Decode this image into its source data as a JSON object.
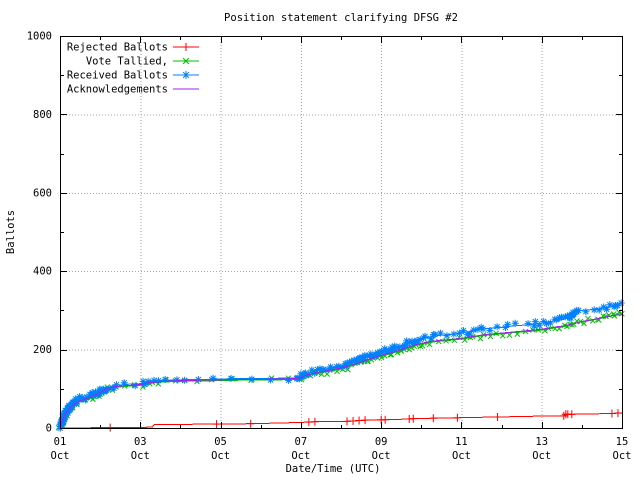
{
  "window": {
    "background": "#ffffff"
  },
  "chart_data": {
    "type": "line",
    "title": "Position statement clarifying DFSG #2",
    "xlabel": "Date/Time (UTC)",
    "ylabel": "Ballots",
    "ylim": [
      0,
      1000
    ],
    "y_major_ticks": [
      0,
      200,
      400,
      600,
      800,
      1000
    ],
    "y_minor_ticks": [
      100,
      300,
      500,
      700,
      900
    ],
    "x_major_days": [
      1,
      3,
      5,
      7,
      9,
      11,
      13,
      15
    ],
    "x_major_labels": [
      [
        "01",
        "Oct"
      ],
      [
        "03",
        "Oct"
      ],
      [
        "05",
        "Oct"
      ],
      [
        "07",
        "Oct"
      ],
      [
        "09",
        "Oct"
      ],
      [
        "11",
        "Oct"
      ],
      [
        "13",
        "Oct"
      ],
      [
        "15",
        "Oct"
      ]
    ],
    "x_minor_days": [
      2,
      4,
      6,
      8,
      10,
      12,
      14
    ],
    "grid": "dotted",
    "grid_color": "#a6a6a6",
    "legend_position": "top-left-inside",
    "series": [
      {
        "name": "Rejected Ballots",
        "slug": "rejected-ballots",
        "color": "#ff0000",
        "marker": "plus",
        "marker_days": [
          2.25,
          4.9,
          5.75,
          7.2,
          7.35,
          8.15,
          8.3,
          8.45,
          8.6,
          9.0,
          9.1,
          9.7,
          9.8,
          10.3,
          10.9,
          11.9,
          13.55,
          13.6,
          13.65,
          13.75,
          14.75,
          14.9
        ],
        "points": [
          [
            1.0,
            0
          ],
          [
            2.25,
            1
          ],
          [
            3.3,
            2
          ],
          [
            3.35,
            9
          ],
          [
            4.9,
            10
          ],
          [
            5.75,
            11
          ],
          [
            6.6,
            13
          ],
          [
            7.2,
            15
          ],
          [
            7.35,
            16
          ],
          [
            8.15,
            17
          ],
          [
            8.3,
            18
          ],
          [
            8.45,
            19
          ],
          [
            8.6,
            20
          ],
          [
            9.0,
            21
          ],
          [
            9.1,
            21
          ],
          [
            9.7,
            23
          ],
          [
            9.8,
            24
          ],
          [
            10.3,
            25
          ],
          [
            10.9,
            26
          ],
          [
            11.3,
            27
          ],
          [
            11.9,
            28
          ],
          [
            12.85,
            30
          ],
          [
            13.55,
            31
          ],
          [
            13.6,
            35
          ],
          [
            13.75,
            35
          ],
          [
            14.75,
            37
          ],
          [
            14.9,
            38
          ],
          [
            15.0,
            38
          ]
        ]
      },
      {
        "name": "Vote Tallied,",
        "slug": "vote-tallied",
        "color": "#00c000",
        "marker": "cross",
        "points": [
          [
            1.0,
            0
          ],
          [
            1.05,
            12
          ],
          [
            1.1,
            26
          ],
          [
            1.15,
            36
          ],
          [
            1.2,
            44
          ],
          [
            1.3,
            55
          ],
          [
            1.4,
            63
          ],
          [
            1.5,
            68
          ],
          [
            1.6,
            71
          ],
          [
            1.75,
            76
          ],
          [
            1.9,
            83
          ],
          [
            2.0,
            88
          ],
          [
            2.1,
            94
          ],
          [
            2.2,
            99
          ],
          [
            2.35,
            103
          ],
          [
            2.5,
            105
          ],
          [
            2.75,
            107
          ],
          [
            3.0,
            109
          ],
          [
            3.1,
            111
          ],
          [
            3.25,
            114
          ],
          [
            3.4,
            116
          ],
          [
            3.55,
            117
          ],
          [
            3.75,
            118
          ],
          [
            4.0,
            119
          ],
          [
            4.25,
            120
          ],
          [
            4.6,
            120
          ],
          [
            5.0,
            121
          ],
          [
            5.5,
            122
          ],
          [
            6.0,
            122
          ],
          [
            6.5,
            123
          ],
          [
            6.9,
            124
          ],
          [
            7.0,
            127
          ],
          [
            7.1,
            132
          ],
          [
            7.3,
            137
          ],
          [
            7.5,
            141
          ],
          [
            7.75,
            146
          ],
          [
            8.0,
            151
          ],
          [
            8.25,
            158
          ],
          [
            8.5,
            166
          ],
          [
            8.75,
            175
          ],
          [
            9.0,
            183
          ],
          [
            9.25,
            190
          ],
          [
            9.5,
            198
          ],
          [
            9.75,
            207
          ],
          [
            10.0,
            214
          ],
          [
            10.25,
            219
          ],
          [
            10.5,
            222
          ],
          [
            10.75,
            224
          ],
          [
            11.0,
            227
          ],
          [
            11.25,
            231
          ],
          [
            11.5,
            235
          ],
          [
            11.75,
            238
          ],
          [
            12.0,
            240
          ],
          [
            12.25,
            243
          ],
          [
            12.5,
            245
          ],
          [
            12.75,
            247
          ],
          [
            13.0,
            250
          ],
          [
            13.25,
            254
          ],
          [
            13.5,
            258
          ],
          [
            13.7,
            262
          ],
          [
            13.85,
            267
          ],
          [
            14.0,
            271
          ],
          [
            14.25,
            275
          ],
          [
            14.5,
            280
          ],
          [
            14.75,
            286
          ],
          [
            15.0,
            293
          ]
        ]
      },
      {
        "name": "Received Ballots",
        "slug": "received-ballots",
        "color": "#0080ff",
        "marker": "star",
        "points": [
          [
            1.0,
            2
          ],
          [
            1.05,
            15
          ],
          [
            1.1,
            30
          ],
          [
            1.15,
            40
          ],
          [
            1.2,
            48
          ],
          [
            1.3,
            60
          ],
          [
            1.4,
            68
          ],
          [
            1.5,
            73
          ],
          [
            1.6,
            76
          ],
          [
            1.75,
            81
          ],
          [
            1.9,
            88
          ],
          [
            2.0,
            93
          ],
          [
            2.1,
            99
          ],
          [
            2.2,
            104
          ],
          [
            2.35,
            108
          ],
          [
            2.5,
            110
          ],
          [
            2.75,
            112
          ],
          [
            3.0,
            113
          ],
          [
            3.1,
            115
          ],
          [
            3.25,
            118
          ],
          [
            3.4,
            120
          ],
          [
            3.55,
            121
          ],
          [
            3.75,
            122
          ],
          [
            4.0,
            123
          ],
          [
            4.25,
            124
          ],
          [
            4.6,
            124
          ],
          [
            5.0,
            125
          ],
          [
            5.5,
            126
          ],
          [
            6.0,
            126
          ],
          [
            6.5,
            127
          ],
          [
            6.9,
            128
          ],
          [
            7.0,
            132
          ],
          [
            7.1,
            138
          ],
          [
            7.3,
            143
          ],
          [
            7.5,
            148
          ],
          [
            7.75,
            153
          ],
          [
            8.0,
            158
          ],
          [
            8.25,
            166
          ],
          [
            8.5,
            175
          ],
          [
            8.75,
            185
          ],
          [
            9.0,
            194
          ],
          [
            9.25,
            202
          ],
          [
            9.5,
            210
          ],
          [
            9.75,
            220
          ],
          [
            10.0,
            228
          ],
          [
            10.25,
            233
          ],
          [
            10.5,
            237
          ],
          [
            10.75,
            239
          ],
          [
            11.0,
            242
          ],
          [
            11.25,
            247
          ],
          [
            11.5,
            252
          ],
          [
            11.75,
            255
          ],
          [
            12.0,
            257
          ],
          [
            12.25,
            260
          ],
          [
            12.5,
            262
          ],
          [
            12.75,
            264
          ],
          [
            13.0,
            268
          ],
          [
            13.25,
            272
          ],
          [
            13.5,
            276
          ],
          [
            13.7,
            282
          ],
          [
            13.8,
            290
          ],
          [
            13.9,
            298
          ],
          [
            14.0,
            300
          ],
          [
            14.25,
            302
          ],
          [
            14.5,
            305
          ],
          [
            14.75,
            310
          ],
          [
            15.0,
            318
          ]
        ]
      },
      {
        "name": "Acknowledgements",
        "slug": "acknowledgements",
        "color": "#a020f0",
        "marker": "none",
        "points": [
          [
            1.0,
            0
          ],
          [
            1.1,
            28
          ],
          [
            1.2,
            46
          ],
          [
            1.3,
            57
          ],
          [
            1.45,
            67
          ],
          [
            1.6,
            73
          ],
          [
            1.75,
            78
          ],
          [
            2.0,
            90
          ],
          [
            2.2,
            101
          ],
          [
            2.35,
            105
          ],
          [
            2.5,
            107
          ],
          [
            2.75,
            109
          ],
          [
            3.0,
            111
          ],
          [
            3.25,
            116
          ],
          [
            3.5,
            118
          ],
          [
            3.75,
            120
          ],
          [
            4.0,
            121
          ],
          [
            4.5,
            122
          ],
          [
            5.0,
            123
          ],
          [
            5.5,
            124
          ],
          [
            6.0,
            124
          ],
          [
            6.5,
            125
          ],
          [
            6.9,
            126
          ],
          [
            7.05,
            130
          ],
          [
            7.1,
            134
          ],
          [
            7.3,
            139
          ],
          [
            7.5,
            143
          ],
          [
            7.75,
            148
          ],
          [
            8.0,
            153
          ],
          [
            8.25,
            160
          ],
          [
            8.5,
            168
          ],
          [
            8.75,
            177
          ],
          [
            9.0,
            185
          ],
          [
            9.25,
            192
          ],
          [
            9.5,
            200
          ],
          [
            9.75,
            209
          ],
          [
            10.0,
            216
          ],
          [
            10.25,
            221
          ],
          [
            10.5,
            224
          ],
          [
            10.75,
            226
          ],
          [
            11.0,
            229
          ],
          [
            11.25,
            233
          ],
          [
            11.5,
            237
          ],
          [
            11.75,
            240
          ],
          [
            12.0,
            242
          ],
          [
            12.5,
            247
          ],
          [
            13.0,
            252
          ],
          [
            13.5,
            260
          ],
          [
            13.75,
            265
          ],
          [
            14.0,
            272
          ],
          [
            14.25,
            276
          ],
          [
            14.5,
            281
          ],
          [
            14.75,
            287
          ],
          [
            15.0,
            289
          ]
        ]
      }
    ]
  }
}
